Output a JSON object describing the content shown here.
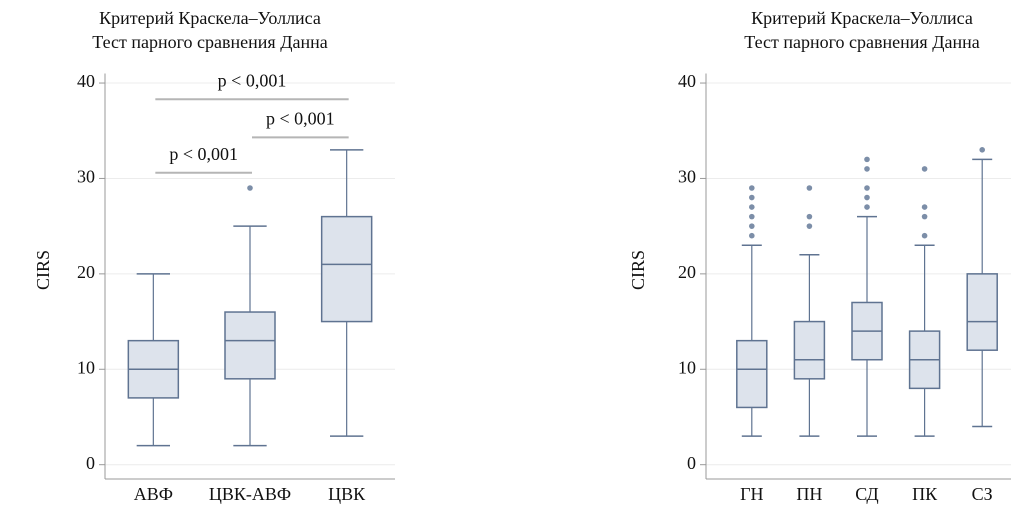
{
  "chart_data": [
    {
      "type": "box",
      "title": "Критерий Краскела–Уоллиса",
      "subtitle": "Тест парного сравнения Данна",
      "ylabel": "CIRS",
      "categories": [
        "АВФ",
        "ЦВК-АВФ",
        "ЦВК"
      ],
      "boxes": [
        {
          "whislo": 2,
          "q1": 7,
          "med": 10,
          "q3": 13,
          "whishi": 20,
          "fliers": []
        },
        {
          "whislo": 2,
          "q1": 9,
          "med": 13,
          "q3": 16,
          "whishi": 25,
          "fliers": [
            29
          ]
        },
        {
          "whislo": 3,
          "q1": 15,
          "med": 21,
          "q3": 26,
          "whishi": 33,
          "fliers": []
        }
      ],
      "annotations": [
        "p < 0,001",
        "p < 0,001",
        "p < 0,001"
      ],
      "color": "#dde3ec",
      "edgecolor": "#5f7391",
      "ylim": [
        -1.5,
        41
      ],
      "yticks": [
        0,
        10,
        20,
        30,
        40
      ],
      "grid": true
    },
    {
      "type": "box",
      "title": "Критерий Краскела–Уоллиса",
      "subtitle": "Тест парного сравнения Данна",
      "ylabel": "CIRS",
      "categories": [
        "ГН",
        "ПН",
        "СД",
        "ПК",
        "СЗ"
      ],
      "boxes": [
        {
          "whislo": 3,
          "q1": 6,
          "med": 10,
          "q3": 13,
          "whishi": 23,
          "fliers": [
            24,
            25,
            26,
            27,
            28,
            29
          ]
        },
        {
          "whislo": 3,
          "q1": 9,
          "med": 11,
          "q3": 15,
          "whishi": 22,
          "fliers": [
            25,
            26,
            29
          ]
        },
        {
          "whislo": 3,
          "q1": 11,
          "med": 14,
          "q3": 17,
          "whishi": 26,
          "fliers": [
            27,
            28,
            29,
            31,
            32
          ]
        },
        {
          "whislo": 3,
          "q1": 8,
          "med": 11,
          "q3": 14,
          "whishi": 23,
          "fliers": [
            24,
            26,
            27,
            31
          ]
        },
        {
          "whislo": 4,
          "q1": 12,
          "med": 15,
          "q3": 20,
          "whishi": 32,
          "fliers": [
            33
          ]
        }
      ],
      "color": "#dde3ec",
      "edgecolor": "#5f7391",
      "ylim": [
        -1.5,
        41
      ],
      "yticks": [
        0,
        10,
        20,
        30,
        40
      ],
      "grid": true
    }
  ]
}
